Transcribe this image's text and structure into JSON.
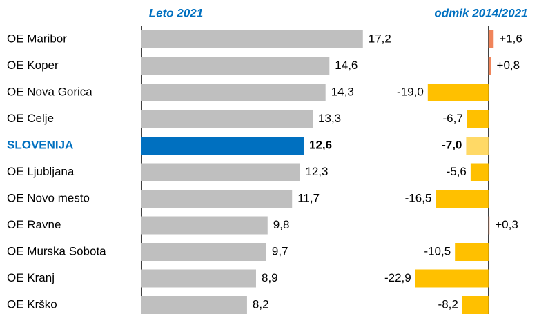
{
  "chart_data": [
    {
      "type": "bar",
      "orientation": "horizontal",
      "title": "Leto 2021",
      "categories": [
        "OE Maribor",
        "OE Koper",
        "OE Nova Gorica",
        "OE Celje",
        "SLOVENIJA",
        "OE Ljubljana",
        "OE Novo mesto",
        "OE Ravne",
        "OE Murska Sobota",
        "OE Kranj",
        "OE Krško"
      ],
      "values": [
        17.2,
        14.6,
        14.3,
        13.3,
        12.6,
        12.3,
        11.7,
        9.8,
        9.7,
        8.9,
        8.2
      ],
      "value_labels": [
        "17,2",
        "14,6",
        "14,3",
        "13,3",
        "12,6",
        "12,3",
        "11,7",
        "9,8",
        "9,7",
        "8,9",
        "8,2"
      ],
      "colors": [
        "#bfbfbf",
        "#bfbfbf",
        "#bfbfbf",
        "#bfbfbf",
        "#0070c0",
        "#bfbfbf",
        "#bfbfbf",
        "#bfbfbf",
        "#bfbfbf",
        "#bfbfbf",
        "#bfbfbf"
      ],
      "highlight_index": 4,
      "xlim": [
        0,
        20
      ]
    },
    {
      "type": "bar",
      "orientation": "horizontal",
      "title": "odmik 2014/2021",
      "values": [
        1.6,
        0.8,
        -19.0,
        -6.7,
        -7.0,
        -5.6,
        -16.5,
        0.3,
        -10.5,
        -22.9,
        -8.2
      ],
      "value_labels": [
        "+1,6",
        "+0,8",
        "-19,0",
        "-6,7",
        "-7,0",
        "-5,6",
        "-16,5",
        "+0,3",
        "-10,5",
        "-22,9",
        "-8,2"
      ],
      "colors": [
        "#f0845a",
        "#f0845a",
        "#ffc000",
        "#ffc000",
        "#ffd966",
        "#ffc000",
        "#ffc000",
        "#f0845a",
        "#ffc000",
        "#ffc000",
        "#ffc000"
      ],
      "highlight_index": 4,
      "xlim": [
        -25,
        5
      ]
    }
  ]
}
